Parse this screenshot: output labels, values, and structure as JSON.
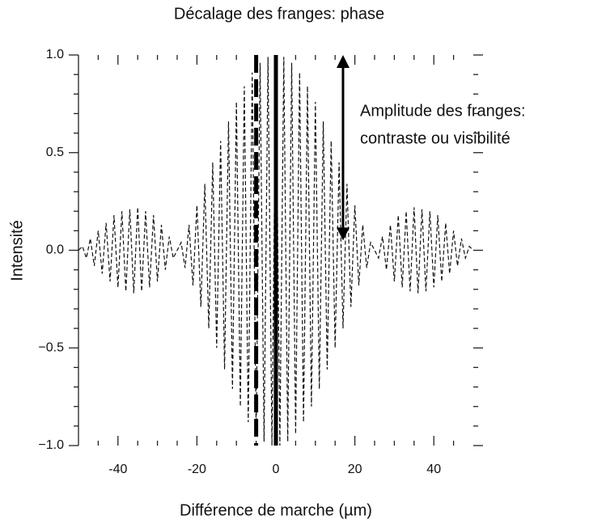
{
  "chart_data": {
    "type": "line",
    "title": "Décalage des franges: phase",
    "x_label": "Différence de marche (µm)",
    "y_label": "Intensité",
    "annotation": [
      "Amplitude des franges:",
      "contraste ou visibilité"
    ],
    "xlim": [
      -50,
      50
    ],
    "ylim": [
      -1,
      1
    ],
    "xticks": [
      -40,
      -20,
      0,
      20,
      40
    ],
    "yticks": [
      {
        "value": -1,
        "label": "−1.0"
      },
      {
        "value": -0.5,
        "label": "−0.5"
      },
      {
        "value": 0,
        "label": "0.0"
      },
      {
        "value": 0.5,
        "label": "0.5"
      },
      {
        "value": 1,
        "label": "1.0"
      }
    ],
    "xminorticks": [
      -45,
      -35,
      -30,
      -25,
      -15,
      -10,
      -5,
      5,
      10,
      15,
      25,
      30,
      35,
      45
    ],
    "yminorticks": [
      -0.9,
      -0.8,
      -0.7,
      -0.6,
      -0.4,
      -0.3,
      -0.2,
      -0.1,
      0.1,
      0.2,
      0.3,
      0.4,
      0.6,
      0.7,
      0.8,
      0.9
    ],
    "markers": [
      {
        "x": 0,
        "style": "solid"
      },
      {
        "x": -5,
        "style": "dashed"
      }
    ],
    "arrow": {
      "x": 17,
      "y": [
        1,
        0.05
      ]
    },
    "x": [
      -50,
      -49,
      -48,
      -47,
      -46,
      -45,
      -44,
      -43,
      -42,
      -41,
      -40,
      -39,
      -38,
      -37,
      -36,
      -35,
      -34,
      -33,
      -32,
      -31,
      -30,
      -29,
      -28,
      -27,
      -26,
      -25,
      -24,
      -23,
      -22,
      -21,
      -20,
      -19,
      -18,
      -17,
      -16,
      -15,
      -14,
      -13,
      -12,
      -11,
      -10,
      -9,
      -8,
      -7,
      -6,
      -5,
      -4,
      -3,
      -2,
      -1,
      0,
      1,
      2,
      3,
      4,
      5,
      6,
      7,
      8,
      9,
      10,
      11,
      12,
      13,
      14,
      15,
      16,
      17,
      18,
      19,
      20,
      21,
      22,
      23,
      24,
      25,
      26,
      27,
      28,
      29,
      30,
      31,
      32,
      33,
      34,
      35,
      36,
      37,
      38,
      39,
      40,
      41,
      42,
      43,
      44,
      45,
      46,
      47,
      48,
      49,
      50
    ],
    "series": [
      {
        "name": "Intensité",
        "color": "#111111",
        "values": [
          0,
          0.02,
          -0.04,
          0.06,
          -0.08,
          0.1,
          -0.12,
          0.14,
          -0.16,
          0.18,
          -0.19,
          0.2,
          -0.21,
          0.21,
          -0.22,
          0.22,
          -0.21,
          0.2,
          -0.19,
          0.18,
          -0.16,
          0.13,
          -0.1,
          0.07,
          -0.04,
          0,
          0.04,
          -0.09,
          0.13,
          -0.18,
          0.23,
          -0.29,
          0.34,
          -0.4,
          0.45,
          -0.5,
          0.56,
          -0.61,
          0.66,
          -0.71,
          0.76,
          -0.8,
          0.84,
          -0.88,
          0.91,
          -0.94,
          0.96,
          -0.98,
          0.99,
          -1,
          1,
          -1,
          0.99,
          -0.98,
          0.96,
          -0.94,
          0.91,
          -0.88,
          0.84,
          -0.8,
          0.76,
          -0.71,
          0.66,
          -0.61,
          0.56,
          -0.5,
          0.45,
          -0.4,
          0.34,
          -0.29,
          0.23,
          -0.18,
          0.13,
          -0.09,
          0.04,
          0,
          -0.04,
          0.07,
          -0.1,
          0.13,
          -0.16,
          0.18,
          -0.19,
          0.2,
          -0.21,
          0.22,
          -0.22,
          0.21,
          -0.21,
          0.2,
          -0.19,
          0.18,
          -0.16,
          0.14,
          -0.12,
          0.1,
          -0.08,
          0.06,
          -0.04,
          0.02,
          0
        ]
      }
    ]
  }
}
